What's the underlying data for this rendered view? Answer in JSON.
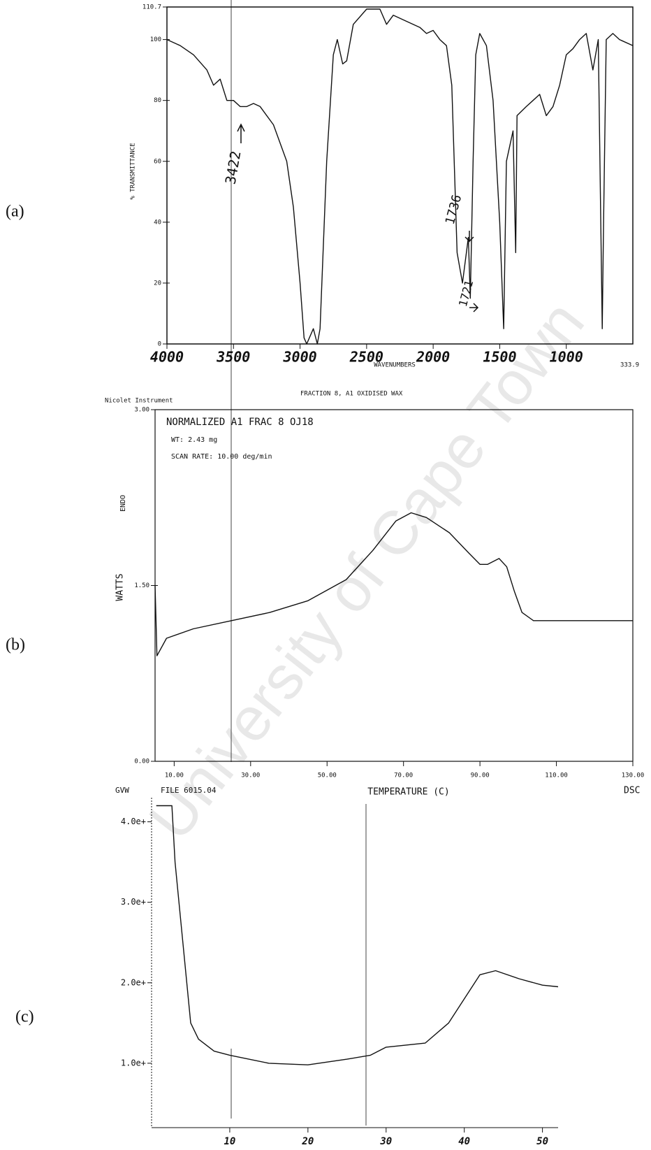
{
  "panels": [
    "(a)",
    "(b)",
    "(c)"
  ],
  "watermark": "University of Cape Town",
  "chart_data": [
    {
      "type": "line",
      "color": "#111111",
      "x_label": "WAVENUMBERS",
      "y_label": "% TRANSMITTANCE",
      "annotations": [
        "3422",
        "1736",
        "1721",
        "333.9"
      ],
      "x": [
        4000,
        3900,
        3800,
        3700,
        3650,
        3600,
        3550,
        3500,
        3450,
        3400,
        3350,
        3300,
        3200,
        3100,
        3050,
        3000,
        2970,
        2950,
        2900,
        2870,
        2850,
        2800,
        2750,
        2720,
        2680,
        2650,
        2600,
        2500,
        2400,
        2350,
        2300,
        2200,
        2100,
        2050,
        2000,
        1950,
        1900,
        1860,
        1820,
        1780,
        1736,
        1721,
        1700,
        1680,
        1650,
        1600,
        1550,
        1500,
        1470,
        1450,
        1400,
        1380,
        1370,
        1300,
        1250,
        1200,
        1150,
        1100,
        1050,
        1000,
        950,
        900,
        850,
        800,
        760,
        730,
        720,
        700,
        650,
        600,
        500
      ],
      "values": [
        100,
        98,
        95,
        90,
        85,
        87,
        80,
        80,
        78,
        78,
        79,
        78,
        72,
        60,
        45,
        20,
        2,
        0,
        5,
        0,
        5,
        60,
        95,
        100,
        92,
        93,
        105,
        110,
        110,
        105,
        108,
        106,
        104,
        102,
        103,
        100,
        98,
        85,
        30,
        20,
        35,
        15,
        60,
        95,
        102,
        98,
        80,
        40,
        5,
        60,
        70,
        30,
        75,
        78,
        80,
        82,
        75,
        78,
        85,
        95,
        97,
        100,
        102,
        90,
        100,
        5,
        40,
        100,
        102,
        100,
        98
      ],
      "xlim": [
        4000,
        500
      ],
      "ylim": [
        0,
        110.7
      ],
      "xticks": [
        4000,
        3500,
        3000,
        2500,
        2000,
        1500,
        1000
      ],
      "yticks": [
        0,
        20,
        40,
        60,
        80,
        100,
        110.7
      ]
    },
    {
      "type": "line",
      "color": "#111111",
      "header": "Nicolet Instrument",
      "title": "FRACTION 8, A1 OXIDISED WAX",
      "x_label": "TEMPERATURE (C)",
      "y_label": "WATTS",
      "annotations": [
        "NORMALIZED A1 FRAC 8 OJ18",
        "WT:    2.43 mg",
        "SCAN RATE:   10.00 deg/min",
        "ENDO",
        "GVW",
        "FILE 6015.04",
        "DSC"
      ],
      "x": [
        5,
        5.5,
        8,
        15,
        25,
        35,
        45,
        55,
        62,
        68,
        72,
        76,
        82,
        87,
        90,
        92,
        95,
        97,
        99,
        101,
        104,
        130
      ],
      "values": [
        1.5,
        0.9,
        1.05,
        1.13,
        1.2,
        1.27,
        1.37,
        1.55,
        1.8,
        2.05,
        2.12,
        2.08,
        1.95,
        1.78,
        1.68,
        1.68,
        1.73,
        1.66,
        1.45,
        1.27,
        1.2,
        1.2
      ],
      "xlim": [
        5,
        130
      ],
      "ylim": [
        0,
        3
      ],
      "xticks": [
        {
          "value": 10,
          "label": "10.00"
        },
        {
          "value": 30,
          "label": "30.00"
        },
        {
          "value": 50,
          "label": "50.00"
        },
        {
          "value": 70,
          "label": "70.00"
        },
        {
          "value": 90,
          "label": "90.00"
        },
        {
          "value": 110,
          "label": "110.00"
        },
        {
          "value": 130,
          "label": "130.00"
        }
      ],
      "yticks": [
        {
          "value": 0,
          "label": "0.00"
        },
        {
          "value": 1.5,
          "label": "1.50"
        },
        {
          "value": 3,
          "label": "3.00"
        }
      ]
    },
    {
      "type": "line",
      "color": "#111111",
      "x": [
        0.6,
        2.6,
        3,
        4,
        5,
        6,
        8,
        10,
        15,
        20,
        25,
        28,
        30,
        35,
        38,
        40,
        42,
        44,
        47,
        50,
        52
      ],
      "values": [
        4.2,
        4.2,
        3.5,
        2.5,
        1.5,
        1.3,
        1.15,
        1.1,
        1.0,
        0.98,
        1.05,
        1.1,
        1.2,
        1.25,
        1.5,
        1.8,
        2.1,
        2.15,
        2.05,
        1.97,
        1.95
      ],
      "xlim": [
        0,
        52
      ],
      "ylim": [
        0.2,
        4.3
      ],
      "xticks": [
        10,
        20,
        30,
        40,
        50
      ],
      "yticks": [
        {
          "value": 1,
          "label": "1.0e+"
        },
        {
          "value": 2,
          "label": "2.0e+"
        },
        {
          "value": 3,
          "label": "3.0e+"
        },
        {
          "value": 4,
          "label": "4.0e+"
        }
      ]
    }
  ]
}
